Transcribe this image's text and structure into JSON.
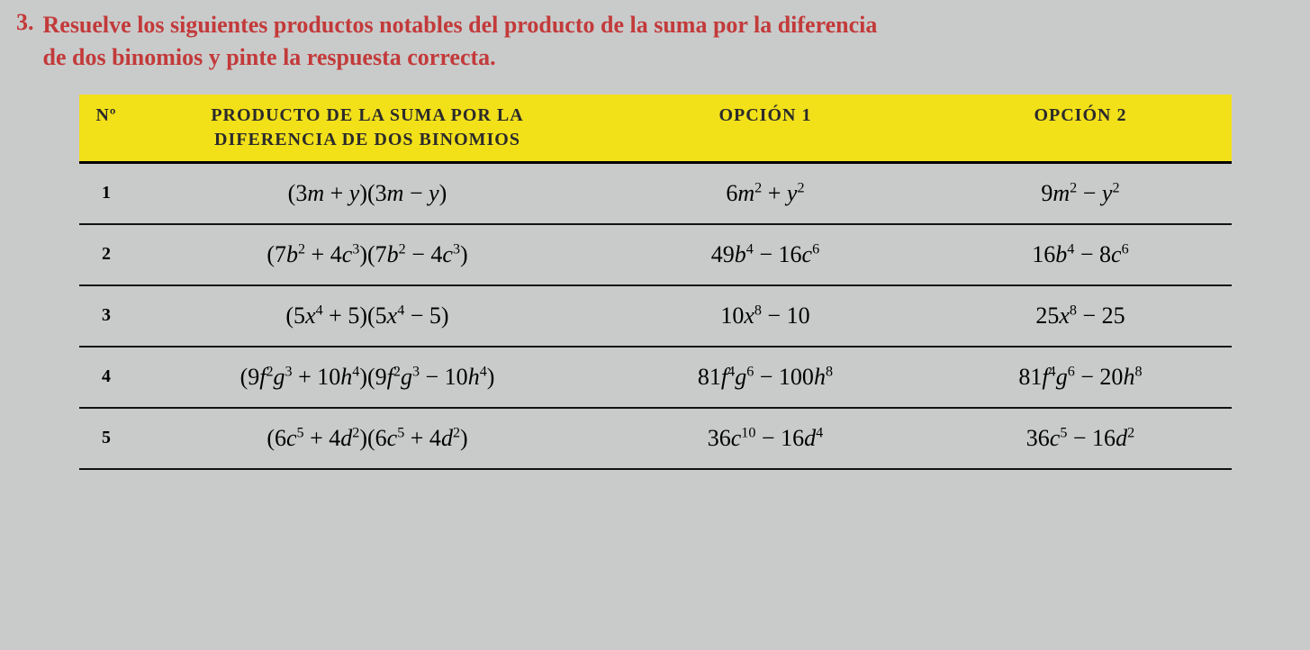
{
  "prompt": {
    "number": "3.",
    "text_line1": "Resuelve los siguientes productos notables del producto de la suma por la diferencia",
    "text_line2": "de dos binomios y pinte la respuesta correcta.",
    "color": "#c33a3a"
  },
  "table": {
    "header_bg": "#f2e019",
    "header_color": "#2b2b2b",
    "columns": {
      "num": "Nº",
      "product_line1": "PRODUCTO DE LA SUMA POR LA",
      "product_line2": "DIFERENCIA DE DOS BINOMIOS",
      "opt1": "OPCIÓN 1",
      "opt2": "OPCIÓN 2"
    },
    "rows": [
      {
        "n": "1",
        "product_html": "(3<span class='mathit'>m</span> + <span class='mathit'>y</span>)(3<span class='mathit'>m</span> − <span class='mathit'>y</span>)",
        "opt1_html": "6<span class='mathit'>m</span><sup>2</sup> + <span class='mathit'>y</span><sup>2</sup>",
        "opt2_html": "9<span class='mathit'>m</span><sup>2</sup> − <span class='mathit'>y</span><sup>2</sup>"
      },
      {
        "n": "2",
        "product_html": "(7<span class='mathit'>b</span><sup>2</sup> + 4<span class='mathit'>c</span><sup>3</sup>)(7<span class='mathit'>b</span><sup>2</sup> − 4<span class='mathit'>c</span><sup>3</sup>)",
        "opt1_html": "49<span class='mathit'>b</span><sup>4</sup> − 16<span class='mathit'>c</span><sup>6</sup>",
        "opt2_html": "16<span class='mathit'>b</span><sup>4</sup> − 8<span class='mathit'>c</span><sup>6</sup>"
      },
      {
        "n": "3",
        "product_html": "(5<span class='mathit'>x</span><sup>4</sup> + 5)(5<span class='mathit'>x</span><sup>4</sup> − 5)",
        "opt1_html": "10<span class='mathit'>x</span><sup>8</sup> − 10",
        "opt2_html": "25<span class='mathit'>x</span><sup>8</sup> − 25"
      },
      {
        "n": "4",
        "product_html": "(9<span class='mathit'>f</span><sup>2</sup><span class='mathit'>g</span><sup>3</sup> + 10<span class='mathit'>h</span><sup>4</sup>)(9<span class='mathit'>f</span><sup>2</sup><span class='mathit'>g</span><sup>3</sup> − 10<span class='mathit'>h</span><sup>4</sup>)",
        "opt1_html": "81<span class='mathit'>f</span><sup>4</sup><span class='mathit'>g</span><sup>6</sup> − 100<span class='mathit'>h</span><sup>8</sup>",
        "opt2_html": "81<span class='mathit'>f</span><sup>4</sup><span class='mathit'>g</span><sup>6</sup> − 20<span class='mathit'>h</span><sup>8</sup>"
      },
      {
        "n": "5",
        "product_html": "(6<span class='mathit'>c</span><sup>5</sup> + 4<span class='mathit'>d</span><sup>2</sup>)(6<span class='mathit'>c</span><sup>5</sup> + 4<span class='mathit'>d</span><sup>2</sup>)",
        "opt1_html": "36<span class='mathit'>c</span><sup>10</sup> − 16<span class='mathit'>d</span><sup>4</sup>",
        "opt2_html": "36<span class='mathit'>c</span><sup>5</sup> − 16<span class='mathit'>d</span><sup>2</sup>"
      }
    ]
  }
}
